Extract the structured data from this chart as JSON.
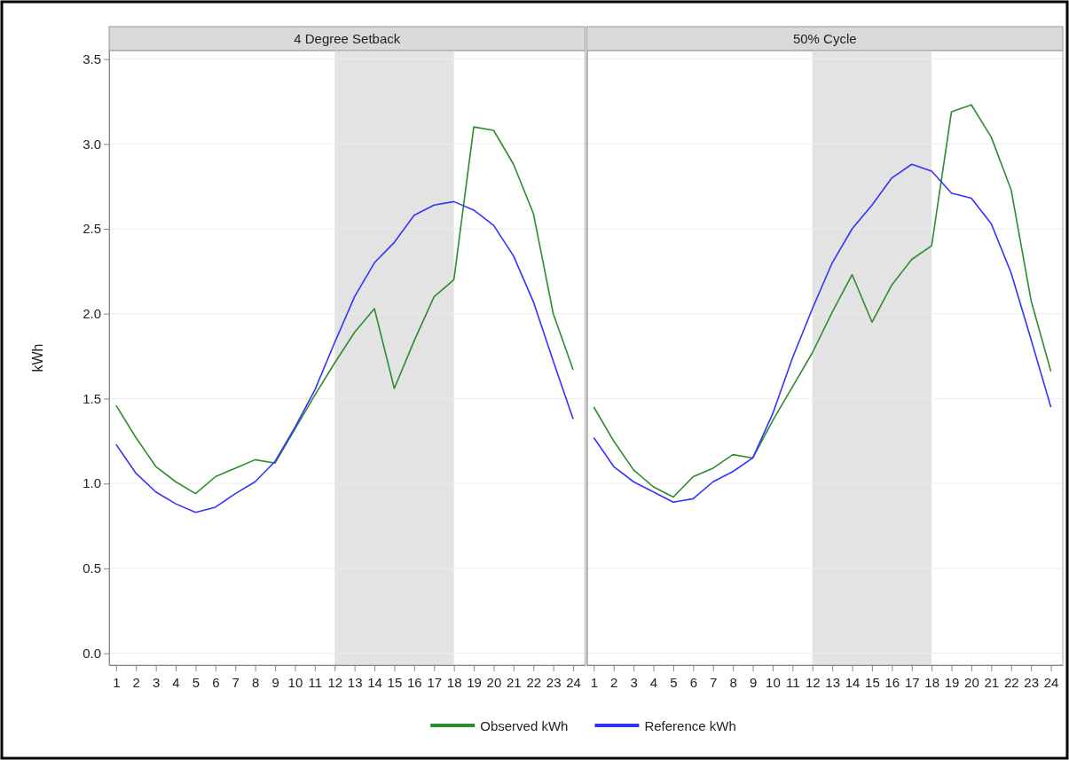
{
  "chart_data": [
    {
      "type": "line",
      "title": "4 Degree Setback",
      "ylabel": "kWh",
      "x": [
        1,
        2,
        3,
        4,
        5,
        6,
        7,
        8,
        9,
        10,
        11,
        12,
        13,
        14,
        15,
        16,
        17,
        18,
        19,
        20,
        21,
        22,
        23,
        24
      ],
      "series": [
        {
          "name": "Observed kWh",
          "color": "#2e8b2e",
          "values": [
            1.46,
            1.27,
            1.1,
            1.01,
            0.94,
            1.04,
            1.09,
            1.14,
            1.12,
            1.32,
            1.52,
            1.71,
            1.89,
            2.03,
            1.56,
            1.84,
            2.1,
            2.2,
            3.1,
            3.08,
            2.88,
            2.59,
            2.0,
            1.67
          ]
        },
        {
          "name": "Reference kWh",
          "color": "#3333ff",
          "values": [
            1.23,
            1.06,
            0.95,
            0.88,
            0.83,
            0.86,
            0.94,
            1.01,
            1.13,
            1.33,
            1.55,
            1.83,
            2.1,
            2.3,
            2.42,
            2.58,
            2.64,
            2.66,
            2.61,
            2.52,
            2.34,
            2.07,
            1.72,
            1.38
          ]
        }
      ],
      "xlim": [
        0.65,
        24.6
      ],
      "xticks": [
        1,
        2,
        3,
        4,
        5,
        6,
        7,
        8,
        9,
        10,
        11,
        12,
        13,
        14,
        15,
        16,
        17,
        18,
        19,
        20,
        21,
        22,
        23,
        24
      ],
      "ylim": [
        -0.07,
        3.55
      ],
      "yticks": [
        {
          "value": 0,
          "label": "0.0"
        },
        0.5,
        {
          "value": 1,
          "label": "1.0"
        },
        1.5,
        {
          "value": 2,
          "label": "2.0"
        },
        2.5,
        {
          "value": 3,
          "label": "3.0"
        },
        3.5
      ],
      "bands": [
        {
          "axis": "x",
          "from": 12,
          "to": 18,
          "color": "#e3e3e3"
        }
      ],
      "grid": "y",
      "legend": "bottom",
      "marker": "none",
      "line_style": "solid"
    },
    {
      "type": "line",
      "title": "50% Cycle",
      "x": [
        1,
        2,
        3,
        4,
        5,
        6,
        7,
        8,
        9,
        10,
        11,
        12,
        13,
        14,
        15,
        16,
        17,
        18,
        19,
        20,
        21,
        22,
        23,
        24
      ],
      "series": [
        {
          "color": "#2e8b2e",
          "values": [
            1.45,
            1.25,
            1.08,
            0.98,
            0.92,
            1.04,
            1.09,
            1.17,
            1.15,
            1.37,
            1.57,
            1.77,
            2.01,
            2.23,
            1.95,
            2.17,
            2.32,
            2.4,
            3.19,
            3.23,
            3.04,
            2.73,
            2.08,
            1.66
          ]
        },
        {
          "color": "#3333ff",
          "values": [
            1.27,
            1.1,
            1.01,
            0.95,
            0.89,
            0.91,
            1.01,
            1.07,
            1.15,
            1.41,
            1.74,
            2.03,
            2.3,
            2.5,
            2.64,
            2.8,
            2.88,
            2.84,
            2.71,
            2.68,
            2.53,
            2.24,
            1.85,
            1.45
          ]
        }
      ],
      "xlim": [
        0.65,
        24.6
      ],
      "xticks": [
        1,
        2,
        3,
        4,
        5,
        6,
        7,
        8,
        9,
        10,
        11,
        12,
        13,
        14,
        15,
        16,
        17,
        18,
        19,
        20,
        21,
        22,
        23,
        24
      ],
      "ylim": [
        -0.07,
        3.55
      ],
      "yticks": [
        0,
        0.5,
        1,
        1.5,
        2,
        2.5,
        3,
        3.5
      ],
      "bands": [
        {
          "axis": "x",
          "from": 12,
          "to": 18,
          "color": "#e3e3e3"
        }
      ],
      "grid": "y",
      "tick_labels": "x",
      "marker": "none",
      "line_style": "solid"
    }
  ]
}
